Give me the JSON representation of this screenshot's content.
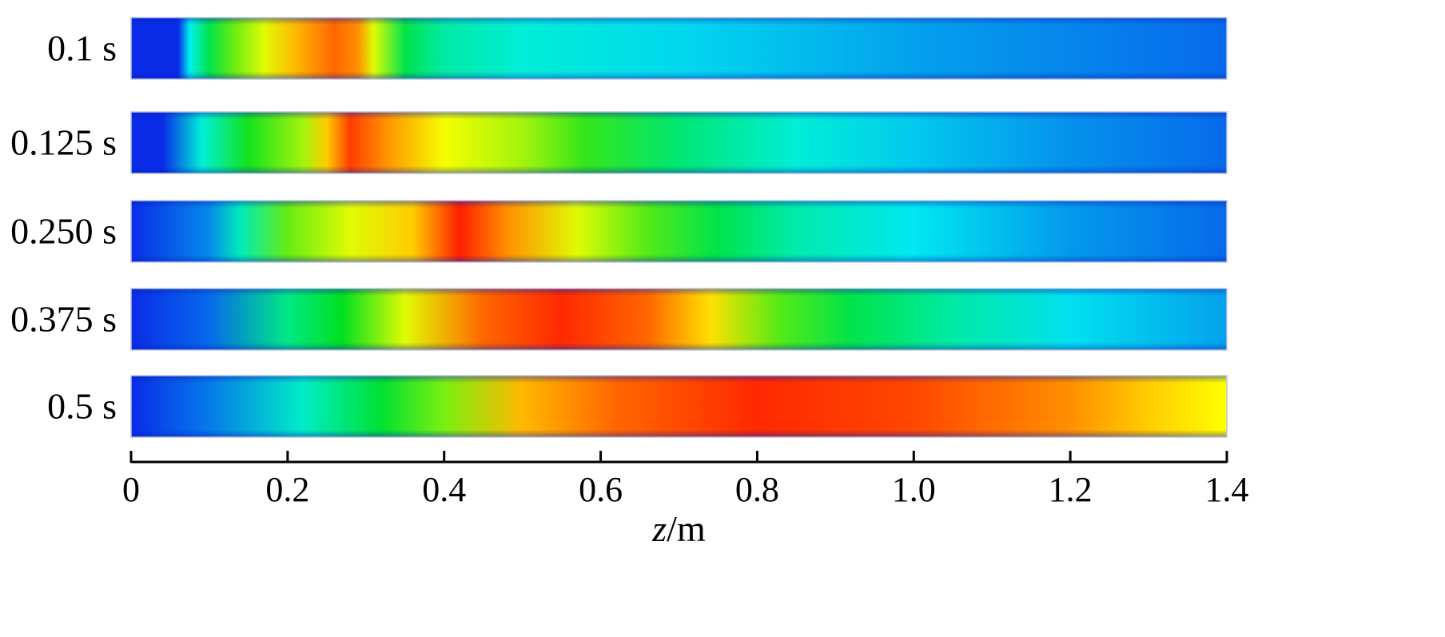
{
  "chart_data": {
    "type": "heatmap",
    "title": "",
    "xlabel_var": "z",
    "xlabel_unit": "/m",
    "x_range": [
      0,
      1.4
    ],
    "x_ticks": [
      0,
      0.2,
      0.4,
      0.6,
      0.8,
      1.0,
      1.2,
      1.4
    ],
    "x_tick_labels": [
      "0",
      "0.2",
      "0.4",
      "0.6",
      "0.8",
      "1.0",
      "1.2",
      "1.4"
    ],
    "colormap": [
      "#0a2be8",
      "#00f0f0",
      "#00e020",
      "#ffff00",
      "#ff0000"
    ],
    "rows": [
      {
        "label": "0.1 s",
        "profile": [
          [
            0.0,
            0.0
          ],
          [
            0.06,
            0.0
          ],
          [
            0.075,
            0.25
          ],
          [
            0.1,
            0.45
          ],
          [
            0.13,
            0.6
          ],
          [
            0.17,
            0.72
          ],
          [
            0.21,
            0.82
          ],
          [
            0.26,
            0.9
          ],
          [
            0.29,
            0.86
          ],
          [
            0.31,
            0.72
          ],
          [
            0.35,
            0.45
          ],
          [
            0.4,
            0.34
          ],
          [
            0.5,
            0.28
          ],
          [
            0.7,
            0.22
          ],
          [
            1.0,
            0.15
          ],
          [
            1.4,
            0.08
          ]
        ]
      },
      {
        "label": "0.125 s",
        "profile": [
          [
            0.0,
            0.0
          ],
          [
            0.04,
            0.0
          ],
          [
            0.09,
            0.28
          ],
          [
            0.15,
            0.52
          ],
          [
            0.22,
            0.66
          ],
          [
            0.25,
            0.8
          ],
          [
            0.28,
            0.94
          ],
          [
            0.33,
            0.85
          ],
          [
            0.4,
            0.74
          ],
          [
            0.5,
            0.66
          ],
          [
            0.58,
            0.55
          ],
          [
            0.7,
            0.4
          ],
          [
            0.85,
            0.28
          ],
          [
            1.0,
            0.2
          ],
          [
            1.2,
            0.13
          ],
          [
            1.4,
            0.08
          ]
        ]
      },
      {
        "label": "0.250 s",
        "profile": [
          [
            0.0,
            0.0
          ],
          [
            0.1,
            0.12
          ],
          [
            0.14,
            0.32
          ],
          [
            0.2,
            0.6
          ],
          [
            0.28,
            0.72
          ],
          [
            0.36,
            0.8
          ],
          [
            0.42,
            0.97
          ],
          [
            0.48,
            0.86
          ],
          [
            0.57,
            0.72
          ],
          [
            0.66,
            0.58
          ],
          [
            0.75,
            0.45
          ],
          [
            0.85,
            0.33
          ],
          [
            1.0,
            0.24
          ],
          [
            1.2,
            0.14
          ],
          [
            1.4,
            0.08
          ]
        ]
      },
      {
        "label": "0.375 s",
        "profile": [
          [
            0.0,
            0.0
          ],
          [
            0.1,
            0.08
          ],
          [
            0.2,
            0.38
          ],
          [
            0.27,
            0.5
          ],
          [
            0.35,
            0.72
          ],
          [
            0.45,
            0.9
          ],
          [
            0.55,
            0.96
          ],
          [
            0.66,
            0.9
          ],
          [
            0.74,
            0.78
          ],
          [
            0.83,
            0.58
          ],
          [
            0.92,
            0.45
          ],
          [
            1.05,
            0.34
          ],
          [
            1.2,
            0.23
          ],
          [
            1.4,
            0.15
          ]
        ]
      },
      {
        "label": "0.5 s",
        "profile": [
          [
            0.0,
            0.0
          ],
          [
            0.1,
            0.1
          ],
          [
            0.22,
            0.3
          ],
          [
            0.32,
            0.48
          ],
          [
            0.4,
            0.62
          ],
          [
            0.5,
            0.82
          ],
          [
            0.62,
            0.9
          ],
          [
            0.8,
            0.96
          ],
          [
            1.0,
            0.93
          ],
          [
            1.2,
            0.86
          ],
          [
            1.3,
            0.8
          ],
          [
            1.4,
            0.75
          ]
        ]
      }
    ]
  }
}
